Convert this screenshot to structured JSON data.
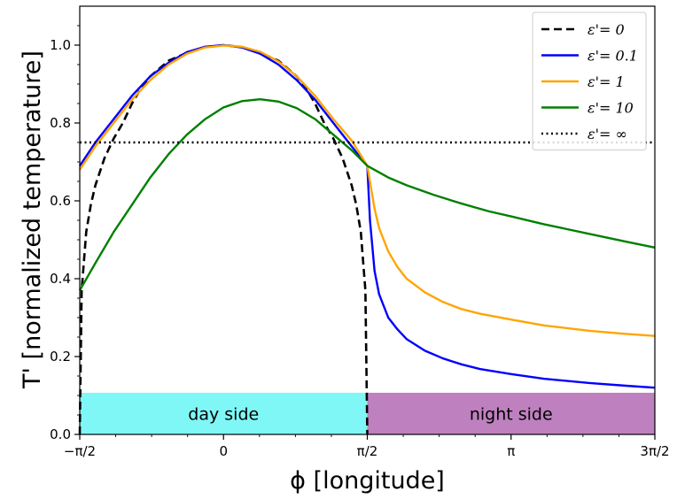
{
  "chart_data": {
    "type": "line",
    "xlabel": "ϕ [longitude]",
    "ylabel": "T' [normalized temperature]",
    "xlim": [
      -1.5708,
      4.7124
    ],
    "ylim": [
      0,
      1.1
    ],
    "x_ticks": [
      {
        "value": -1.5708,
        "label": "−π/2"
      },
      {
        "value": 0,
        "label": "0"
      },
      {
        "value": 1.5708,
        "label": "π/2"
      },
      {
        "value": 3.1416,
        "label": "π"
      },
      {
        "value": 4.7124,
        "label": "3π/2"
      }
    ],
    "y_ticks": [
      {
        "value": 0,
        "label": "0.0"
      },
      {
        "value": 0.2,
        "label": "0.2"
      },
      {
        "value": 0.4,
        "label": "0.4"
      },
      {
        "value": 0.6,
        "label": "0.6"
      },
      {
        "value": 0.8,
        "label": "0.8"
      },
      {
        "value": 1.0,
        "label": "1.0"
      }
    ],
    "grid": false,
    "legend_position": "top-right",
    "regions": [
      {
        "label": "day side",
        "x": [
          -1.5708,
          1.5708
        ],
        "y": [
          0,
          0.107
        ],
        "color": "#7ff7f7"
      },
      {
        "label": "night side",
        "x": [
          1.5708,
          4.7124
        ],
        "y": [
          0,
          0.107
        ],
        "color": "#bf80bf"
      }
    ],
    "series": [
      {
        "name": "ε'= 0",
        "color": "#000000",
        "style": "dashed",
        "x": [
          -1.5708,
          -1.55,
          -1.5,
          -1.45,
          -1.4,
          -1.3,
          -1.2,
          -1.1,
          -1.0,
          -0.9,
          -0.8,
          -0.6,
          -0.4,
          -0.2,
          0,
          0.2,
          0.4,
          0.6,
          0.8,
          0.9,
          1.0,
          1.1,
          1.2,
          1.3,
          1.4,
          1.45,
          1.5,
          1.55,
          1.5708
        ],
        "y": [
          0.0,
          0.37,
          0.52,
          0.59,
          0.64,
          0.71,
          0.76,
          0.8,
          0.85,
          0.89,
          0.92,
          0.96,
          0.98,
          0.995,
          1.0,
          0.995,
          0.98,
          0.96,
          0.92,
          0.89,
          0.85,
          0.8,
          0.76,
          0.71,
          0.64,
          0.59,
          0.52,
          0.37,
          0.0
        ]
      },
      {
        "name": "ε'= 0.1",
        "color": "#0000ff",
        "style": "solid",
        "x": [
          -1.5708,
          -1.4,
          -1.2,
          -1.0,
          -0.8,
          -0.6,
          -0.4,
          -0.2,
          0,
          0.2,
          0.4,
          0.6,
          0.8,
          1.0,
          1.2,
          1.4,
          1.5,
          1.5708,
          1.6,
          1.65,
          1.7,
          1.8,
          1.9,
          2.0,
          2.2,
          2.4,
          2.6,
          2.8,
          3.1416,
          3.5,
          4.0,
          4.4,
          4.7124
        ],
        "y": [
          0.69,
          0.75,
          0.81,
          0.87,
          0.92,
          0.955,
          0.982,
          0.996,
          1.0,
          0.994,
          0.978,
          0.95,
          0.91,
          0.86,
          0.8,
          0.74,
          0.71,
          0.69,
          0.55,
          0.42,
          0.36,
          0.3,
          0.27,
          0.245,
          0.215,
          0.195,
          0.18,
          0.168,
          0.155,
          0.143,
          0.132,
          0.125,
          0.12
        ]
      },
      {
        "name": "ε'= 1",
        "color": "#ffa500",
        "style": "solid",
        "x": [
          -1.5708,
          -1.4,
          -1.2,
          -1.0,
          -0.8,
          -0.6,
          -0.4,
          -0.2,
          0,
          0.2,
          0.4,
          0.6,
          0.8,
          1.0,
          1.2,
          1.4,
          1.5708,
          1.65,
          1.7,
          1.8,
          1.9,
          2.0,
          2.2,
          2.4,
          2.6,
          2.8,
          3.1416,
          3.5,
          4.0,
          4.4,
          4.7124
        ],
        "y": [
          0.68,
          0.74,
          0.8,
          0.86,
          0.91,
          0.95,
          0.978,
          0.994,
          0.999,
          0.996,
          0.983,
          0.958,
          0.92,
          0.87,
          0.81,
          0.755,
          0.69,
          0.58,
          0.53,
          0.47,
          0.43,
          0.4,
          0.365,
          0.34,
          0.322,
          0.31,
          0.295,
          0.28,
          0.266,
          0.258,
          0.253
        ]
      },
      {
        "name": "ε'= 10",
        "color": "#008000",
        "style": "solid",
        "x": [
          -1.5708,
          -1.4,
          -1.2,
          -1.0,
          -0.8,
          -0.6,
          -0.4,
          -0.2,
          0,
          0.2,
          0.4,
          0.6,
          0.8,
          1.0,
          1.2,
          1.4,
          1.5708,
          1.8,
          2.0,
          2.3,
          2.6,
          2.9,
          3.1416,
          3.5,
          4.0,
          4.4,
          4.7124
        ],
        "y": [
          0.37,
          0.44,
          0.52,
          0.59,
          0.66,
          0.72,
          0.77,
          0.81,
          0.84,
          0.856,
          0.861,
          0.855,
          0.838,
          0.81,
          0.77,
          0.73,
          0.69,
          0.66,
          0.64,
          0.615,
          0.593,
          0.573,
          0.56,
          0.54,
          0.515,
          0.495,
          0.48
        ]
      },
      {
        "name": "ε'= ∞",
        "color": "#000000",
        "style": "dotted",
        "x": [
          -1.5708,
          4.7124
        ],
        "y": [
          0.75,
          0.75
        ]
      }
    ]
  }
}
